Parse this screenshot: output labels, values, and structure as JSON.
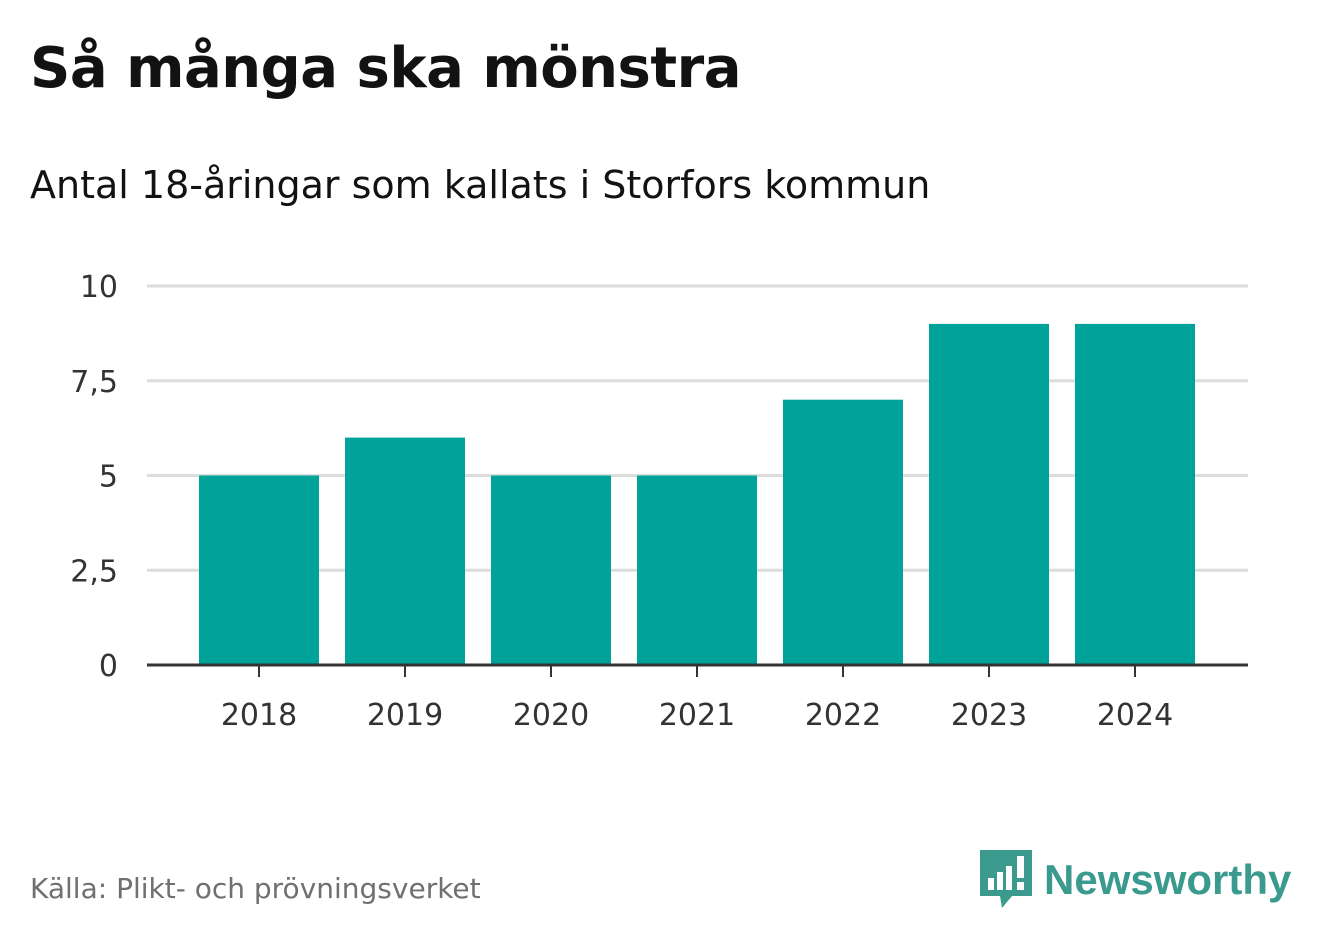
{
  "header": {
    "title": "Så många ska mönstra",
    "subtitle": "Antal 18-åringar som kallats i Storfors kommun"
  },
  "footer": {
    "source": "Källa: Plikt- och prövningsverket",
    "brand": "Newsworthy",
    "brand_icon": "bar-chart-speech-bubble-icon"
  },
  "colors": {
    "bar": "#00a39a",
    "grid": "#dddddd",
    "axis": "#333333",
    "brand": "#3a9a8e"
  },
  "chart_data": {
    "type": "bar",
    "title": "Så många ska mönstra",
    "subtitle": "Antal 18-åringar som kallats i Storfors kommun",
    "categories": [
      "2018",
      "2019",
      "2020",
      "2021",
      "2022",
      "2023",
      "2024"
    ],
    "values": [
      5,
      6,
      5,
      5,
      7,
      9,
      9
    ],
    "xlabel": "",
    "ylabel": "",
    "ylim": [
      0,
      10
    ],
    "yticks": [
      0,
      2.5,
      5,
      7.5,
      10
    ],
    "ytick_labels": [
      "0",
      "2,5",
      "5",
      "7,5",
      "10"
    ],
    "grid": true,
    "legend": "none"
  }
}
